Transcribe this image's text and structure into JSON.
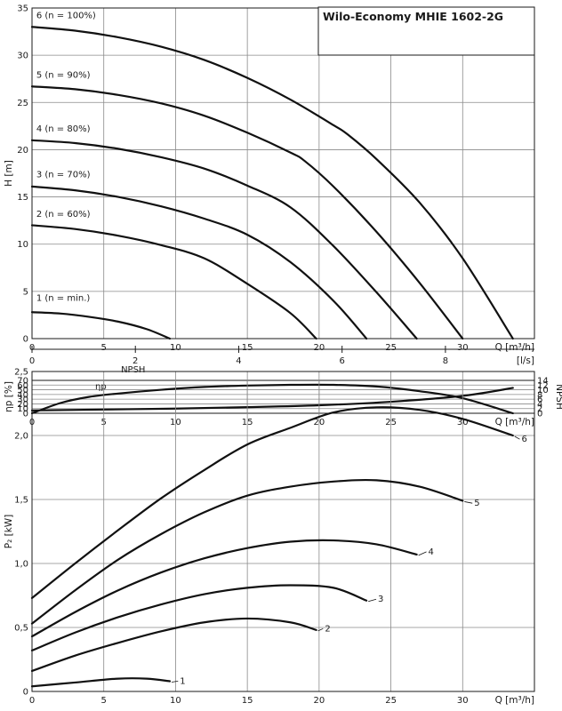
{
  "title": "Wilo-Economy MHIE 1602-2G",
  "chart_data": [
    {
      "id": "head",
      "type": "line",
      "xlabel": "Q [m³/h]",
      "ylabel": "H [m]",
      "xlim": [
        0,
        35
      ],
      "ylim": [
        0,
        35
      ],
      "xticks": [
        0,
        5,
        10,
        15,
        20,
        25,
        30
      ],
      "yticks": [
        0,
        5,
        10,
        15,
        20,
        25,
        30,
        35
      ],
      "secondary_x": {
        "label": "[l/s]",
        "ticks": [
          0,
          2,
          4,
          6,
          8
        ]
      },
      "grid": true,
      "series": [
        {
          "name": "1 (n = min.)",
          "label_at": [
            0.3,
            4.0
          ],
          "points": [
            [
              0,
              2.8
            ],
            [
              2,
              2.65
            ],
            [
              4,
              2.3
            ],
            [
              6,
              1.8
            ],
            [
              8,
              1.0
            ],
            [
              9.6,
              0
            ]
          ]
        },
        {
          "name": "2 (n = 60%)",
          "label_at": [
            0.3,
            12.9
          ],
          "points": [
            [
              0,
              12.0
            ],
            [
              3,
              11.6
            ],
            [
              6,
              10.9
            ],
            [
              9,
              9.9
            ],
            [
              12,
              8.5
            ],
            [
              15,
              5.8
            ],
            [
              18,
              2.7
            ],
            [
              19.8,
              0
            ]
          ]
        },
        {
          "name": "3 (n = 70%)",
          "label_at": [
            0.3,
            17.1
          ],
          "points": [
            [
              0,
              16.1
            ],
            [
              3,
              15.7
            ],
            [
              6,
              15.0
            ],
            [
              9,
              14.0
            ],
            [
              12,
              12.7
            ],
            [
              15,
              11.0
            ],
            [
              18,
              8.1
            ],
            [
              21,
              4.0
            ],
            [
              23.3,
              0
            ]
          ]
        },
        {
          "name": "4 (n = 80%)",
          "label_at": [
            0.3,
            21.9
          ],
          "points": [
            [
              0,
              21.0
            ],
            [
              3,
              20.7
            ],
            [
              6,
              20.1
            ],
            [
              9,
              19.2
            ],
            [
              12,
              18.0
            ],
            [
              15,
              16.2
            ],
            [
              18,
              13.9
            ],
            [
              21,
              9.8
            ],
            [
              24,
              4.9
            ],
            [
              26.8,
              0
            ]
          ]
        },
        {
          "name": "5 (n = 90%)",
          "label_at": [
            0.3,
            27.6
          ],
          "points": [
            [
              0,
              26.7
            ],
            [
              3,
              26.4
            ],
            [
              6,
              25.8
            ],
            [
              9,
              24.9
            ],
            [
              12,
              23.6
            ],
            [
              15,
              21.8
            ],
            [
              18,
              19.7
            ],
            [
              19,
              18.8
            ],
            [
              21,
              16.1
            ],
            [
              24,
              11.3
            ],
            [
              27,
              5.9
            ],
            [
              30,
              0
            ]
          ]
        },
        {
          "name": "6 (n = 100%)",
          "label_at": [
            0.3,
            33.9
          ],
          "points": [
            [
              0,
              33.0
            ],
            [
              3,
              32.6
            ],
            [
              6,
              31.9
            ],
            [
              9,
              30.9
            ],
            [
              12,
              29.5
            ],
            [
              15,
              27.6
            ],
            [
              18,
              25.3
            ],
            [
              21,
              22.6
            ],
            [
              22,
              21.6
            ],
            [
              24,
              19.0
            ],
            [
              27,
              14.4
            ],
            [
              30,
              8.5
            ],
            [
              33.5,
              0
            ]
          ]
        }
      ]
    },
    {
      "id": "efficiency_npsh",
      "type": "line",
      "xlabel": "Q [m³/h]",
      "ylabel": "ηp [%]",
      "ylabel_right": "NPSH",
      "xlim": [
        0,
        35
      ],
      "ylim": [
        0,
        70
      ],
      "ylim_right": [
        0,
        14
      ],
      "xticks": [
        0,
        5,
        10,
        15,
        20,
        25,
        30
      ],
      "yticks": [
        0,
        10,
        20,
        30,
        40,
        50,
        60,
        70
      ],
      "yticks_right": [
        0,
        2,
        4,
        6,
        8,
        10,
        12,
        14
      ],
      "grid": true,
      "series": [
        {
          "name": "ηp",
          "label": "ηp",
          "label_at": [
            4.4,
            51
          ],
          "points": [
            [
              0,
              0
            ],
            [
              2,
              22
            ],
            [
              4,
              35
            ],
            [
              6,
              42
            ],
            [
              9,
              50
            ],
            [
              12,
              56
            ],
            [
              15,
              59
            ],
            [
              18,
              60.5
            ],
            [
              21,
              60.5
            ],
            [
              24,
              57
            ],
            [
              27,
              47
            ],
            [
              30,
              32
            ],
            [
              33.5,
              0
            ]
          ]
        },
        {
          "name": "NPSH",
          "label": "NPSH",
          "label_at": [
            6.2,
            17.5
          ],
          "axis": "right",
          "points": [
            [
              0,
              1.2
            ],
            [
              5,
              1.6
            ],
            [
              10,
              2.0
            ],
            [
              15,
              2.6
            ],
            [
              20,
              3.4
            ],
            [
              25,
              4.9
            ],
            [
              30,
              7.4
            ],
            [
              33.5,
              10.8
            ]
          ]
        }
      ]
    },
    {
      "id": "power",
      "type": "line",
      "xlabel": "Q [m³/h]",
      "ylabel": "P₂ [kW]",
      "xlim": [
        0,
        35
      ],
      "ylim": [
        0,
        2.5
      ],
      "xticks": [
        0,
        5,
        10,
        15,
        20,
        25,
        30
      ],
      "yticks": [
        0,
        0.5,
        1.0,
        1.5,
        2.0,
        2.5
      ],
      "ytick_labels": [
        "0",
        "0,5",
        "1,0",
        "1,5",
        "2,0",
        "2,5"
      ],
      "grid": true,
      "series": [
        {
          "name": "1",
          "label_at": [
            10.3,
            0.06
          ],
          "points": [
            [
              0,
              0.04
            ],
            [
              3,
              0.07
            ],
            [
              6,
              0.1
            ],
            [
              8,
              0.1
            ],
            [
              9.6,
              0.08
            ]
          ]
        },
        {
          "name": "2",
          "label_at": [
            20.4,
            0.47
          ],
          "points": [
            [
              0,
              0.16
            ],
            [
              3,
              0.28
            ],
            [
              6,
              0.38
            ],
            [
              9,
              0.47
            ],
            [
              12,
              0.54
            ],
            [
              15,
              0.57
            ],
            [
              18,
              0.54
            ],
            [
              19.8,
              0.48
            ]
          ]
        },
        {
          "name": "3",
          "label_at": [
            24.1,
            0.7
          ],
          "points": [
            [
              0,
              0.32
            ],
            [
              3,
              0.46
            ],
            [
              6,
              0.58
            ],
            [
              9,
              0.68
            ],
            [
              12,
              0.76
            ],
            [
              15,
              0.81
            ],
            [
              18,
              0.83
            ],
            [
              21,
              0.81
            ],
            [
              23.3,
              0.71
            ]
          ]
        },
        {
          "name": "4",
          "label_at": [
            27.6,
            1.07
          ],
          "points": [
            [
              0,
              0.43
            ],
            [
              3,
              0.62
            ],
            [
              6,
              0.79
            ],
            [
              9,
              0.93
            ],
            [
              12,
              1.04
            ],
            [
              15,
              1.12
            ],
            [
              18,
              1.17
            ],
            [
              21,
              1.18
            ],
            [
              24,
              1.15
            ],
            [
              26.8,
              1.07
            ]
          ]
        },
        {
          "name": "5",
          "label_at": [
            30.8,
            1.45
          ],
          "points": [
            [
              0,
              0.53
            ],
            [
              3,
              0.79
            ],
            [
              6,
              1.03
            ],
            [
              9,
              1.23
            ],
            [
              12,
              1.4
            ],
            [
              15,
              1.53
            ],
            [
              18,
              1.6
            ],
            [
              21,
              1.64
            ],
            [
              24,
              1.65
            ],
            [
              27,
              1.6
            ],
            [
              30,
              1.49
            ]
          ]
        },
        {
          "name": "6",
          "label_at": [
            34.1,
            1.95
          ],
          "points": [
            [
              0,
              0.73
            ],
            [
              3,
              1.0
            ],
            [
              6,
              1.26
            ],
            [
              9,
              1.51
            ],
            [
              12,
              1.73
            ],
            [
              15,
              1.93
            ],
            [
              18,
              2.06
            ],
            [
              21,
              2.18
            ],
            [
              24,
              2.22
            ],
            [
              27,
              2.2
            ],
            [
              30,
              2.13
            ],
            [
              33.5,
              2.0
            ]
          ]
        }
      ]
    }
  ]
}
